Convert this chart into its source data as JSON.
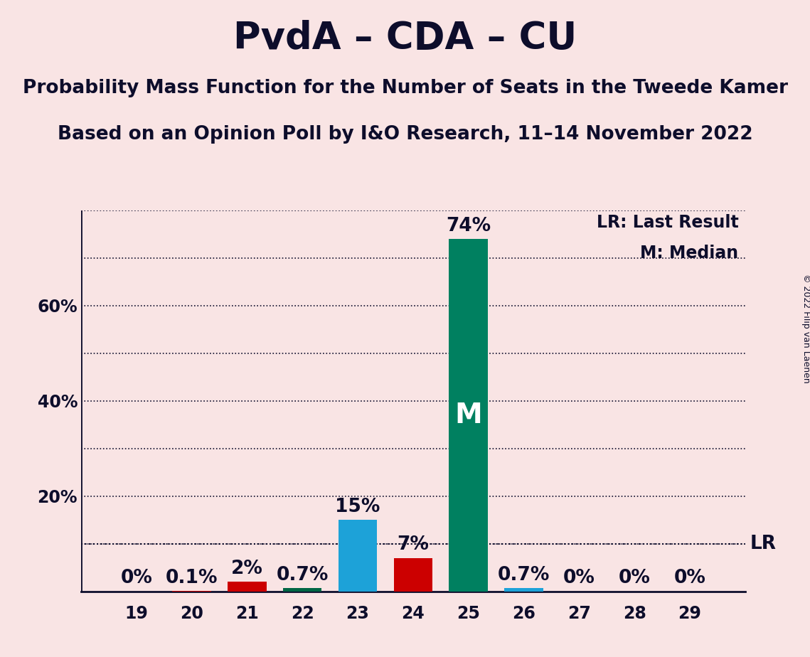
{
  "title": "PvdA – CDA – CU",
  "subtitle1": "Probability Mass Function for the Number of Seats in the Tweede Kamer",
  "subtitle2": "Based on an Opinion Poll by I&O Research, 11–14 November 2022",
  "copyright": "© 2022 Filip van Laenen",
  "background_color": "#f9e4e4",
  "seats": [
    19,
    20,
    21,
    22,
    23,
    24,
    25,
    26,
    27,
    28,
    29
  ],
  "probabilities": [
    0.0,
    0.1,
    2.0,
    0.7,
    15.0,
    7.0,
    74.0,
    0.7,
    0.0,
    0.0,
    0.0
  ],
  "bar_colors": [
    "#cc0000",
    "#cc0000",
    "#cc0000",
    "#006644",
    "#1da2d8",
    "#cc0000",
    "#008060",
    "#1da2d8",
    "#cc0000",
    "#cc0000",
    "#cc0000"
  ],
  "median_seat": 25,
  "last_result_pct": 10.0,
  "ylim": [
    0,
    80
  ],
  "grid_ticks": [
    10,
    20,
    30,
    40,
    50,
    60,
    70,
    80
  ],
  "ylabel_ticks": [
    20,
    40,
    60
  ],
  "ylabel_labels": [
    "20%",
    "40%",
    "60%"
  ],
  "title_color": "#0d0d2b",
  "axis_color": "#0d0d2b",
  "label_fontsize": 17,
  "title_fontsize": 38,
  "subtitle_fontsize": 19,
  "bar_label_fontsize": 19,
  "median_label": "M",
  "median_label_color": "#ffffff",
  "median_label_fontsize": 28,
  "lr_label": "LR",
  "lr_color": "#0d0d2b",
  "legend_text_lr": "LR: Last Result",
  "legend_text_m": "M: Median"
}
